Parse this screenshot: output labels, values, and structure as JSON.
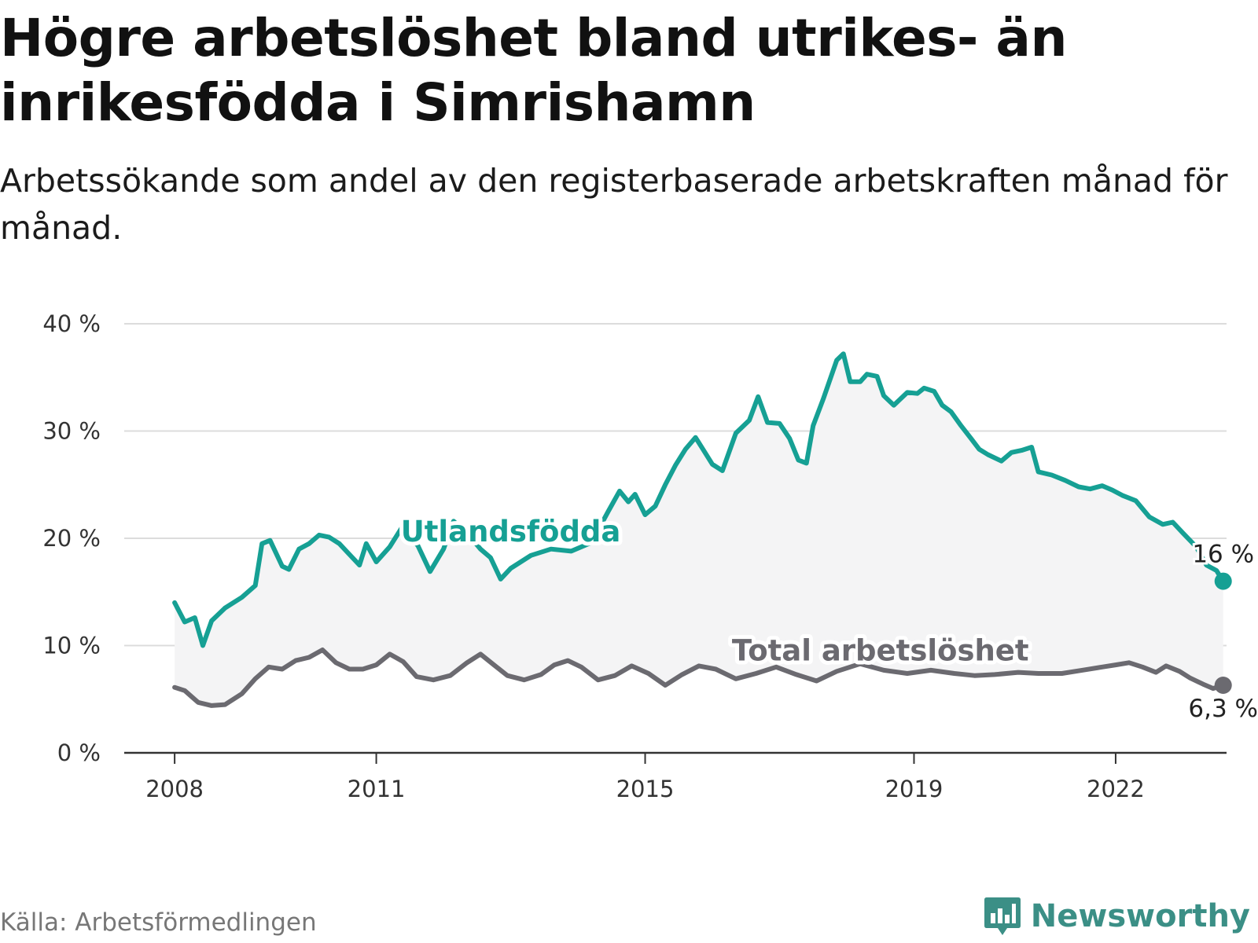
{
  "header": {
    "title": "Högre arbetslöshet bland utrikes- än inrikesfödda i Simrishamn",
    "subtitle": "Arbetssökande som andel av den registerbaserade arbetskraften månad för månad."
  },
  "footer": {
    "source": "Källa: Arbetsförmedlingen",
    "brand": "Newsworthy"
  },
  "colors": {
    "foreign": "#16a094",
    "total": "#6b6a70",
    "band": "#f4f4f5",
    "grid": "#dcdcdc",
    "axis": "#333333"
  },
  "chart_data": {
    "type": "line",
    "title": "Högre arbetslöshet bland utrikes- än inrikesfödda i Simrishamn",
    "xlabel": "",
    "ylabel": "",
    "ylim": [
      0,
      40
    ],
    "xlim": [
      2007.25,
      2023.65
    ],
    "y_ticks": [
      0,
      10,
      20,
      30,
      40
    ],
    "y_tick_labels": [
      "0 %",
      "10 %",
      "20 %",
      "30 %",
      "40 %"
    ],
    "x_ticks": [
      2008,
      2011,
      2015,
      2019,
      2022
    ],
    "x_tick_labels": [
      "2008",
      "2011",
      "2015",
      "2019",
      "2022"
    ],
    "grid": true,
    "band_between_series": true,
    "series": [
      {
        "name": "Utlandsfödda",
        "color": "#16a094",
        "end_label": "16 %",
        "points": [
          [
            2008.0,
            14.0
          ],
          [
            2008.15,
            12.2
          ],
          [
            2008.3,
            12.6
          ],
          [
            2008.42,
            10.0
          ],
          [
            2008.55,
            12.3
          ],
          [
            2008.75,
            13.5
          ],
          [
            2009.0,
            14.5
          ],
          [
            2009.2,
            15.6
          ],
          [
            2009.3,
            19.5
          ],
          [
            2009.42,
            19.8
          ],
          [
            2009.6,
            17.4
          ],
          [
            2009.7,
            17.1
          ],
          [
            2009.85,
            19.0
          ],
          [
            2010.0,
            19.5
          ],
          [
            2010.15,
            20.3
          ],
          [
            2010.3,
            20.1
          ],
          [
            2010.45,
            19.5
          ],
          [
            2010.6,
            18.5
          ],
          [
            2010.75,
            17.5
          ],
          [
            2010.85,
            19.5
          ],
          [
            2011.0,
            17.8
          ],
          [
            2011.2,
            19.2
          ],
          [
            2011.38,
            21.0
          ],
          [
            2011.5,
            20.2
          ],
          [
            2011.62,
            19.3
          ],
          [
            2011.8,
            16.9
          ],
          [
            2012.0,
            19.0
          ],
          [
            2012.15,
            21.6
          ],
          [
            2012.35,
            20.5
          ],
          [
            2012.55,
            19.0
          ],
          [
            2012.7,
            18.2
          ],
          [
            2012.85,
            16.2
          ],
          [
            2013.0,
            17.2
          ],
          [
            2013.3,
            18.4
          ],
          [
            2013.6,
            19.0
          ],
          [
            2013.9,
            18.8
          ],
          [
            2014.2,
            19.6
          ],
          [
            2014.45,
            22.5
          ],
          [
            2014.62,
            24.4
          ],
          [
            2014.75,
            23.4
          ],
          [
            2014.85,
            24.1
          ],
          [
            2015.0,
            22.2
          ],
          [
            2015.15,
            23.0
          ],
          [
            2015.3,
            25.0
          ],
          [
            2015.45,
            26.8
          ],
          [
            2015.6,
            28.3
          ],
          [
            2015.75,
            29.4
          ],
          [
            2015.85,
            28.4
          ],
          [
            2016.0,
            26.9
          ],
          [
            2016.15,
            26.3
          ],
          [
            2016.35,
            29.8
          ],
          [
            2016.55,
            31.0
          ],
          [
            2016.68,
            33.2
          ],
          [
            2016.82,
            30.8
          ],
          [
            2017.0,
            30.7
          ],
          [
            2017.15,
            29.3
          ],
          [
            2017.28,
            27.3
          ],
          [
            2017.4,
            27.0
          ],
          [
            2017.5,
            30.5
          ],
          [
            2017.65,
            33.0
          ],
          [
            2017.85,
            36.6
          ],
          [
            2017.95,
            37.2
          ],
          [
            2018.05,
            34.6
          ],
          [
            2018.2,
            34.6
          ],
          [
            2018.3,
            35.3
          ],
          [
            2018.45,
            35.1
          ],
          [
            2018.55,
            33.3
          ],
          [
            2018.7,
            32.4
          ],
          [
            2018.9,
            33.6
          ],
          [
            2019.05,
            33.5
          ],
          [
            2019.15,
            34.0
          ],
          [
            2019.3,
            33.7
          ],
          [
            2019.42,
            32.4
          ],
          [
            2019.55,
            31.8
          ],
          [
            2019.7,
            30.5
          ],
          [
            2019.85,
            29.3
          ],
          [
            2019.97,
            28.3
          ],
          [
            2020.1,
            27.8
          ],
          [
            2020.3,
            27.2
          ],
          [
            2020.45,
            28.0
          ],
          [
            2020.6,
            28.2
          ],
          [
            2020.75,
            28.5
          ],
          [
            2020.85,
            26.2
          ],
          [
            2021.05,
            25.9
          ],
          [
            2021.25,
            25.4
          ],
          [
            2021.45,
            24.8
          ],
          [
            2021.62,
            24.6
          ],
          [
            2021.8,
            24.9
          ],
          [
            2021.95,
            24.5
          ],
          [
            2022.1,
            24.0
          ],
          [
            2022.3,
            23.5
          ],
          [
            2022.5,
            22.0
          ],
          [
            2022.7,
            21.3
          ],
          [
            2022.85,
            21.5
          ],
          [
            2023.0,
            20.5
          ],
          [
            2023.2,
            19.2
          ],
          [
            2023.35,
            17.5
          ],
          [
            2023.5,
            17.0
          ],
          [
            2023.6,
            16.0
          ]
        ]
      },
      {
        "name": "Total arbetslöshet",
        "color": "#6b6a70",
        "end_label": "6,3 %",
        "points": [
          [
            2008.0,
            6.1
          ],
          [
            2008.15,
            5.8
          ],
          [
            2008.35,
            4.7
          ],
          [
            2008.55,
            4.4
          ],
          [
            2008.75,
            4.5
          ],
          [
            2009.0,
            5.5
          ],
          [
            2009.2,
            6.9
          ],
          [
            2009.4,
            8.0
          ],
          [
            2009.6,
            7.8
          ],
          [
            2009.8,
            8.6
          ],
          [
            2010.0,
            8.9
          ],
          [
            2010.2,
            9.6
          ],
          [
            2010.4,
            8.4
          ],
          [
            2010.6,
            7.8
          ],
          [
            2010.8,
            7.8
          ],
          [
            2011.0,
            8.2
          ],
          [
            2011.2,
            9.2
          ],
          [
            2011.4,
            8.5
          ],
          [
            2011.6,
            7.1
          ],
          [
            2011.85,
            6.8
          ],
          [
            2012.1,
            7.2
          ],
          [
            2012.35,
            8.4
          ],
          [
            2012.55,
            9.2
          ],
          [
            2012.75,
            8.2
          ],
          [
            2012.95,
            7.2
          ],
          [
            2013.2,
            6.8
          ],
          [
            2013.45,
            7.3
          ],
          [
            2013.65,
            8.2
          ],
          [
            2013.85,
            8.6
          ],
          [
            2014.05,
            8.0
          ],
          [
            2014.3,
            6.8
          ],
          [
            2014.55,
            7.2
          ],
          [
            2014.8,
            8.1
          ],
          [
            2015.05,
            7.4
          ],
          [
            2015.3,
            6.3
          ],
          [
            2015.55,
            7.3
          ],
          [
            2015.8,
            8.1
          ],
          [
            2016.05,
            7.8
          ],
          [
            2016.35,
            6.9
          ],
          [
            2016.65,
            7.4
          ],
          [
            2016.95,
            8.0
          ],
          [
            2017.25,
            7.3
          ],
          [
            2017.55,
            6.7
          ],
          [
            2017.85,
            7.6
          ],
          [
            2018.2,
            8.3
          ],
          [
            2018.55,
            7.7
          ],
          [
            2018.9,
            7.4
          ],
          [
            2019.25,
            7.7
          ],
          [
            2019.6,
            7.4
          ],
          [
            2019.9,
            7.2
          ],
          [
            2020.2,
            7.3
          ],
          [
            2020.55,
            7.5
          ],
          [
            2020.85,
            7.4
          ],
          [
            2021.2,
            7.4
          ],
          [
            2021.5,
            7.7
          ],
          [
            2021.8,
            8.0
          ],
          [
            2022.0,
            8.2
          ],
          [
            2022.2,
            8.4
          ],
          [
            2022.4,
            8.0
          ],
          [
            2022.6,
            7.5
          ],
          [
            2022.75,
            8.1
          ],
          [
            2022.95,
            7.6
          ],
          [
            2023.1,
            7.0
          ],
          [
            2023.3,
            6.4
          ],
          [
            2023.45,
            6.0
          ],
          [
            2023.6,
            6.3
          ]
        ]
      }
    ]
  }
}
